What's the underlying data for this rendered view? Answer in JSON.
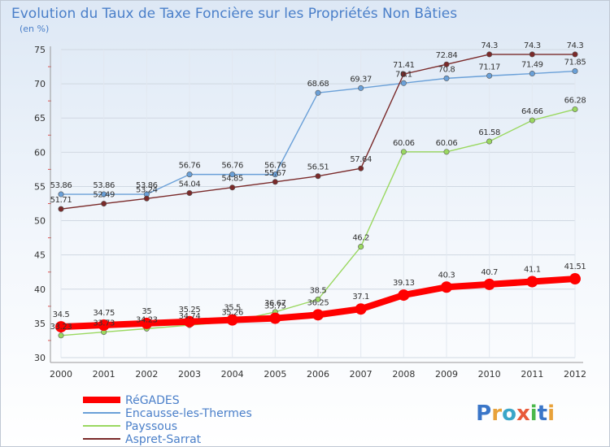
{
  "title": "Evolution du Taux de Taxe Foncière sur les Propriétés Non Bâties",
  "subtitle": "(en %)",
  "brand": {
    "letters": [
      "P",
      "r",
      "o",
      "x",
      "i",
      "t",
      "i"
    ],
    "colors": [
      "#3a76c8",
      "#e8a23a",
      "#3aa6c8",
      "#e85a3a",
      "#4ab84a",
      "#3a76c8",
      "#e8a23a"
    ]
  },
  "chart_data": {
    "type": "line",
    "x": [
      "2000",
      "2001",
      "2002",
      "2003",
      "2004",
      "2005",
      "2006",
      "2007",
      "2008",
      "2009",
      "2010",
      "2011",
      "2012"
    ],
    "ylim": [
      30,
      75
    ],
    "yticks": [
      "30",
      "35",
      "40",
      "45",
      "50",
      "55",
      "60",
      "65",
      "70",
      "75"
    ],
    "grid": true,
    "legend_position": "bottom-left",
    "series": [
      {
        "name": "RéGADES",
        "color": "#ff0000",
        "emphasis": true,
        "values": [
          34.5,
          34.75,
          35,
          35.25,
          35.5,
          35.75,
          36.25,
          37.1,
          39.13,
          40.3,
          40.7,
          41.1,
          41.51
        ],
        "labels": [
          "34.5",
          "34.75",
          "35",
          "35.25",
          "35.5",
          "35.75",
          "36.25",
          "37.1",
          "39.13",
          "40.3",
          "40.7",
          "41.1",
          "41.51"
        ]
      },
      {
        "name": "Encausse-les-Thermes",
        "color": "#6aa0d8",
        "values": [
          53.86,
          53.86,
          53.86,
          56.76,
          56.76,
          56.76,
          68.68,
          69.37,
          70.1,
          70.8,
          71.17,
          71.49,
          71.85
        ],
        "labels": [
          "53.86",
          "53.86",
          "53.86",
          "56.76",
          "56.76",
          "56.76",
          "68.68",
          "69.37",
          "70.1",
          "70.8",
          "71.17",
          "71.49",
          "71.85"
        ]
      },
      {
        "name": "Payssous",
        "color": "#9ad860",
        "values": [
          33.23,
          33.73,
          34.23,
          34.74,
          35.26,
          36.67,
          38.5,
          46.2,
          60.06,
          60.06,
          61.58,
          64.66,
          66.28
        ],
        "labels": [
          "33.23",
          "33.73",
          "34.23",
          "34.74",
          "35.26",
          "36.67",
          "38.5",
          "46.2",
          "60.06",
          "60.06",
          "61.58",
          "64.66",
          "66.28"
        ]
      },
      {
        "name": "Aspret-Sarrat",
        "color": "#7a2a2a",
        "values": [
          51.71,
          52.49,
          53.24,
          54.04,
          54.85,
          55.67,
          56.51,
          57.64,
          71.41,
          72.84,
          74.3,
          74.3,
          74.3
        ],
        "labels": [
          "51.71",
          "52.49",
          "53.24",
          "54.04",
          "54.85",
          "55.67",
          "56.51",
          "57.64",
          "71.41",
          "72.84",
          "74.3",
          "74.3",
          "74.3"
        ]
      }
    ]
  }
}
